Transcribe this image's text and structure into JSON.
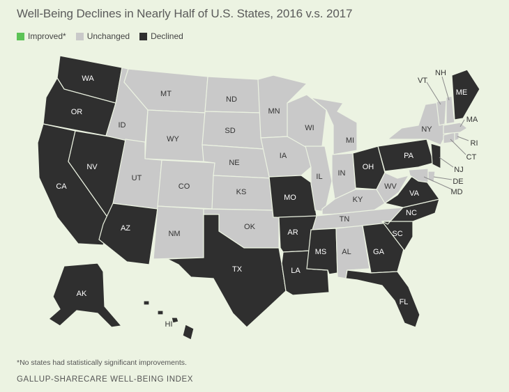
{
  "title": "Well-Being Declines in Nearly Half of U.S. States, 2016 v.s. 2017",
  "legend": {
    "improved": "Improved*",
    "unchanged": "Unchanged",
    "declined": "Declined"
  },
  "colors": {
    "improved": "#5cc356",
    "unchanged": "#c9c9c9",
    "declined": "#2f2f2f",
    "background": "#ecf3e2"
  },
  "states": {
    "WA": {
      "label": "WA",
      "status": "declined"
    },
    "OR": {
      "label": "OR",
      "status": "declined"
    },
    "CA": {
      "label": "CA",
      "status": "declined"
    },
    "NV": {
      "label": "NV",
      "status": "declined"
    },
    "ID": {
      "label": "ID",
      "status": "unchanged"
    },
    "MT": {
      "label": "MT",
      "status": "unchanged"
    },
    "WY": {
      "label": "WY",
      "status": "unchanged"
    },
    "UT": {
      "label": "UT",
      "status": "unchanged"
    },
    "AZ": {
      "label": "AZ",
      "status": "declined"
    },
    "CO": {
      "label": "CO",
      "status": "unchanged"
    },
    "NM": {
      "label": "NM",
      "status": "unchanged"
    },
    "ND": {
      "label": "ND",
      "status": "unchanged"
    },
    "SD": {
      "label": "SD",
      "status": "unchanged"
    },
    "NE": {
      "label": "NE",
      "status": "unchanged"
    },
    "KS": {
      "label": "KS",
      "status": "unchanged"
    },
    "OK": {
      "label": "OK",
      "status": "unchanged"
    },
    "TX": {
      "label": "TX",
      "status": "declined"
    },
    "MN": {
      "label": "MN",
      "status": "unchanged"
    },
    "IA": {
      "label": "IA",
      "status": "unchanged"
    },
    "MO": {
      "label": "MO",
      "status": "declined"
    },
    "AR": {
      "label": "AR",
      "status": "declined"
    },
    "LA": {
      "label": "LA",
      "status": "declined"
    },
    "WI": {
      "label": "WI",
      "status": "unchanged"
    },
    "IL": {
      "label": "IL",
      "status": "unchanged"
    },
    "MI": {
      "label": "MI",
      "status": "unchanged"
    },
    "IN": {
      "label": "IN",
      "status": "unchanged"
    },
    "OH": {
      "label": "OH",
      "status": "declined"
    },
    "KY": {
      "label": "KY",
      "status": "unchanged"
    },
    "TN": {
      "label": "TN",
      "status": "unchanged"
    },
    "MS": {
      "label": "MS",
      "status": "declined"
    },
    "AL": {
      "label": "AL",
      "status": "unchanged"
    },
    "GA": {
      "label": "GA",
      "status": "declined"
    },
    "FL": {
      "label": "FL",
      "status": "declined"
    },
    "SC": {
      "label": "SC",
      "status": "declined"
    },
    "NC": {
      "label": "NC",
      "status": "declined"
    },
    "VA": {
      "label": "VA",
      "status": "declined"
    },
    "WV": {
      "label": "WV",
      "status": "unchanged"
    },
    "PA": {
      "label": "PA",
      "status": "declined"
    },
    "NY": {
      "label": "NY",
      "status": "unchanged"
    },
    "NJ": {
      "label": "NJ",
      "status": "declined"
    },
    "DE": {
      "label": "DE",
      "status": "unchanged"
    },
    "MD": {
      "label": "MD",
      "status": "unchanged"
    },
    "CT": {
      "label": "CT",
      "status": "unchanged"
    },
    "RI": {
      "label": "RI",
      "status": "unchanged"
    },
    "MA": {
      "label": "MA",
      "status": "unchanged"
    },
    "VT": {
      "label": "VT",
      "status": "unchanged"
    },
    "NH": {
      "label": "NH",
      "status": "unchanged"
    },
    "ME": {
      "label": "ME",
      "status": "declined"
    },
    "AK": {
      "label": "AK",
      "status": "declined"
    },
    "HI": {
      "label": "HI",
      "status": "declined"
    }
  },
  "footnote": "*No states had statistically significant improvements.",
  "source": "GALLUP-SHARECARE WELL-BEING INDEX"
}
